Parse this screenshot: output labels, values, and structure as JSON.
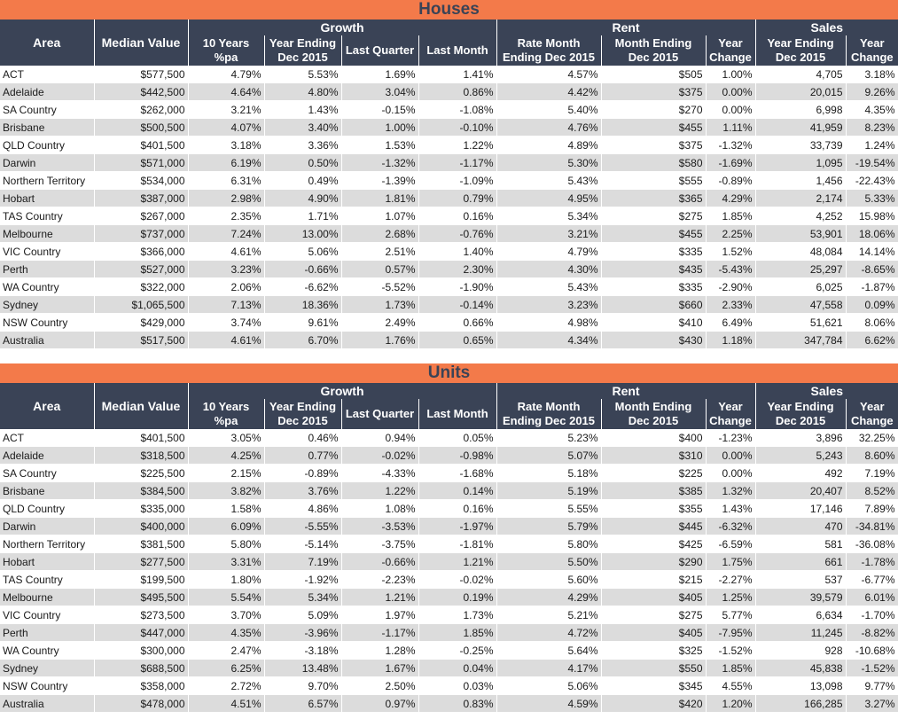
{
  "columns": {
    "area": "Area",
    "median": "Median Value",
    "growth_group": "Growth",
    "rent_group": "Rent",
    "sales_group": "Sales",
    "g10": [
      "10 Years",
      "%pa"
    ],
    "gye": [
      "Year Ending",
      "Dec 2015"
    ],
    "glq": "Last Quarter",
    "glm": "Last Month",
    "rrate": [
      "Rate Month",
      "Ending Dec 2015"
    ],
    "rme": [
      "Month Ending",
      "Dec 2015"
    ],
    "ryc": [
      "Year",
      "Change"
    ],
    "sye": [
      "Year Ending",
      "Dec 2015"
    ],
    "syc": [
      "Year",
      "Change"
    ]
  },
  "houses": {
    "title": "Houses",
    "rows": [
      [
        "ACT",
        "$577,500",
        "4.79%",
        "5.53%",
        "1.69%",
        "1.41%",
        "4.57%",
        "$505",
        "1.00%",
        "4,705",
        "3.18%"
      ],
      [
        "Adelaide",
        "$442,500",
        "4.64%",
        "4.80%",
        "3.04%",
        "0.86%",
        "4.42%",
        "$375",
        "0.00%",
        "20,015",
        "9.26%"
      ],
      [
        "SA Country",
        "$262,000",
        "3.21%",
        "1.43%",
        "-0.15%",
        "-1.08%",
        "5.40%",
        "$270",
        "0.00%",
        "6,998",
        "4.35%"
      ],
      [
        "Brisbane",
        "$500,500",
        "4.07%",
        "3.40%",
        "1.00%",
        "-0.10%",
        "4.76%",
        "$455",
        "1.11%",
        "41,959",
        "8.23%"
      ],
      [
        "QLD Country",
        "$401,500",
        "3.18%",
        "3.36%",
        "1.53%",
        "1.22%",
        "4.89%",
        "$375",
        "-1.32%",
        "33,739",
        "1.24%"
      ],
      [
        "Darwin",
        "$571,000",
        "6.19%",
        "0.50%",
        "-1.32%",
        "-1.17%",
        "5.30%",
        "$580",
        "-1.69%",
        "1,095",
        "-19.54%"
      ],
      [
        "Northern Territory",
        "$534,000",
        "6.31%",
        "0.49%",
        "-1.39%",
        "-1.09%",
        "5.43%",
        "$555",
        "-0.89%",
        "1,456",
        "-22.43%"
      ],
      [
        "Hobart",
        "$387,000",
        "2.98%",
        "4.90%",
        "1.81%",
        "0.79%",
        "4.95%",
        "$365",
        "4.29%",
        "2,174",
        "5.33%"
      ],
      [
        "TAS Country",
        "$267,000",
        "2.35%",
        "1.71%",
        "1.07%",
        "0.16%",
        "5.34%",
        "$275",
        "1.85%",
        "4,252",
        "15.98%"
      ],
      [
        "Melbourne",
        "$737,000",
        "7.24%",
        "13.00%",
        "2.68%",
        "-0.76%",
        "3.21%",
        "$455",
        "2.25%",
        "53,901",
        "18.06%"
      ],
      [
        "VIC Country",
        "$366,000",
        "4.61%",
        "5.06%",
        "2.51%",
        "1.40%",
        "4.79%",
        "$335",
        "1.52%",
        "48,084",
        "14.14%"
      ],
      [
        "Perth",
        "$527,000",
        "3.23%",
        "-0.66%",
        "0.57%",
        "2.30%",
        "4.30%",
        "$435",
        "-5.43%",
        "25,297",
        "-8.65%"
      ],
      [
        "WA Country",
        "$322,000",
        "2.06%",
        "-6.62%",
        "-5.52%",
        "-1.90%",
        "5.43%",
        "$335",
        "-2.90%",
        "6,025",
        "-1.87%"
      ],
      [
        "Sydney",
        "$1,065,500",
        "7.13%",
        "18.36%",
        "1.73%",
        "-0.14%",
        "3.23%",
        "$660",
        "2.33%",
        "47,558",
        "0.09%"
      ],
      [
        "NSW Country",
        "$429,000",
        "3.74%",
        "9.61%",
        "2.49%",
        "0.66%",
        "4.98%",
        "$410",
        "6.49%",
        "51,621",
        "8.06%"
      ],
      [
        "Australia",
        "$517,500",
        "4.61%",
        "6.70%",
        "1.76%",
        "0.65%",
        "4.34%",
        "$430",
        "1.18%",
        "347,784",
        "6.62%"
      ]
    ]
  },
  "units": {
    "title": "Units",
    "rows": [
      [
        "ACT",
        "$401,500",
        "3.05%",
        "0.46%",
        "0.94%",
        "0.05%",
        "5.23%",
        "$400",
        "-1.23%",
        "3,896",
        "32.25%"
      ],
      [
        "Adelaide",
        "$318,500",
        "4.25%",
        "0.77%",
        "-0.02%",
        "-0.98%",
        "5.07%",
        "$310",
        "0.00%",
        "5,243",
        "8.60%"
      ],
      [
        "SA Country",
        "$225,500",
        "2.15%",
        "-0.89%",
        "-4.33%",
        "-1.68%",
        "5.18%",
        "$225",
        "0.00%",
        "492",
        "7.19%"
      ],
      [
        "Brisbane",
        "$384,500",
        "3.82%",
        "3.76%",
        "1.22%",
        "0.14%",
        "5.19%",
        "$385",
        "1.32%",
        "20,407",
        "8.52%"
      ],
      [
        "QLD Country",
        "$335,000",
        "1.58%",
        "4.86%",
        "1.08%",
        "0.16%",
        "5.55%",
        "$355",
        "1.43%",
        "17,146",
        "7.89%"
      ],
      [
        "Darwin",
        "$400,000",
        "6.09%",
        "-5.55%",
        "-3.53%",
        "-1.97%",
        "5.79%",
        "$445",
        "-6.32%",
        "470",
        "-34.81%"
      ],
      [
        "Northern Territory",
        "$381,500",
        "5.80%",
        "-5.14%",
        "-3.75%",
        "-1.81%",
        "5.80%",
        "$425",
        "-6.59%",
        "581",
        "-36.08%"
      ],
      [
        "Hobart",
        "$277,500",
        "3.31%",
        "7.19%",
        "-0.66%",
        "1.21%",
        "5.50%",
        "$290",
        "1.75%",
        "661",
        "-1.78%"
      ],
      [
        "TAS Country",
        "$199,500",
        "1.80%",
        "-1.92%",
        "-2.23%",
        "-0.02%",
        "5.60%",
        "$215",
        "-2.27%",
        "537",
        "-6.77%"
      ],
      [
        "Melbourne",
        "$495,500",
        "5.54%",
        "5.34%",
        "1.21%",
        "0.19%",
        "4.29%",
        "$405",
        "1.25%",
        "39,579",
        "6.01%"
      ],
      [
        "VIC Country",
        "$273,500",
        "3.70%",
        "5.09%",
        "1.97%",
        "1.73%",
        "5.21%",
        "$275",
        "5.77%",
        "6,634",
        "-1.70%"
      ],
      [
        "Perth",
        "$447,000",
        "4.35%",
        "-3.96%",
        "-1.17%",
        "1.85%",
        "4.72%",
        "$405",
        "-7.95%",
        "11,245",
        "-8.82%"
      ],
      [
        "WA Country",
        "$300,000",
        "2.47%",
        "-3.18%",
        "1.28%",
        "-0.25%",
        "5.64%",
        "$325",
        "-1.52%",
        "928",
        "-10.68%"
      ],
      [
        "Sydney",
        "$688,500",
        "6.25%",
        "13.48%",
        "1.67%",
        "0.04%",
        "4.17%",
        "$550",
        "1.85%",
        "45,838",
        "-1.52%"
      ],
      [
        "NSW Country",
        "$358,000",
        "2.72%",
        "9.70%",
        "2.50%",
        "0.03%",
        "5.06%",
        "$345",
        "4.55%",
        "13,098",
        "9.77%"
      ],
      [
        "Australia",
        "$478,000",
        "4.51%",
        "6.57%",
        "0.97%",
        "0.83%",
        "4.59%",
        "$420",
        "1.20%",
        "166,285",
        "3.27%"
      ]
    ]
  }
}
